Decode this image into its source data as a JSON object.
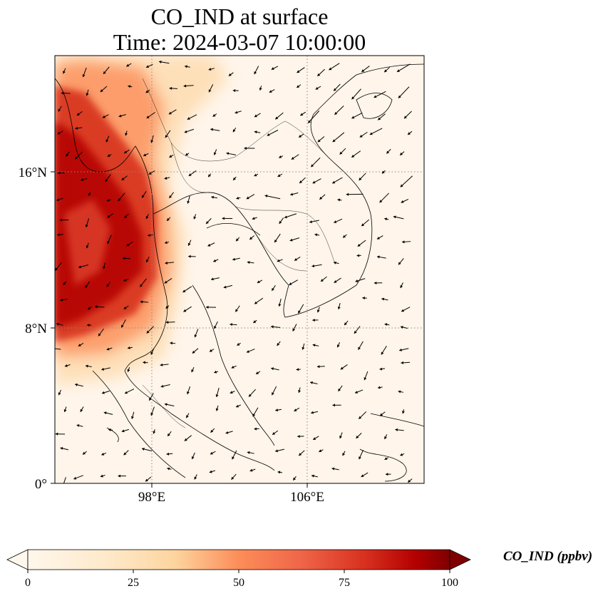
{
  "title": {
    "line1": "CO_IND at surface",
    "line2": "Time: 2024-03-07 10:00:00"
  },
  "axes": {
    "lat_ticks": [
      "16°N",
      "8°N",
      "0°"
    ],
    "lon_ticks": [
      "98°E",
      "106°E"
    ],
    "lon_range": [
      93,
      112
    ],
    "lat_range": [
      0,
      22
    ],
    "gridlines": "dotted"
  },
  "colorbar": {
    "label": "CO_IND (ppbv)",
    "ticks": [
      "0",
      "25",
      "50",
      "75",
      "100"
    ],
    "range": [
      0,
      100
    ],
    "extend": "both",
    "colormap": "OrRd"
  },
  "colors": {
    "low": "#fff7ec",
    "mid": "#fdbb84",
    "high": "#d7301f",
    "max": "#7f0000"
  }
}
